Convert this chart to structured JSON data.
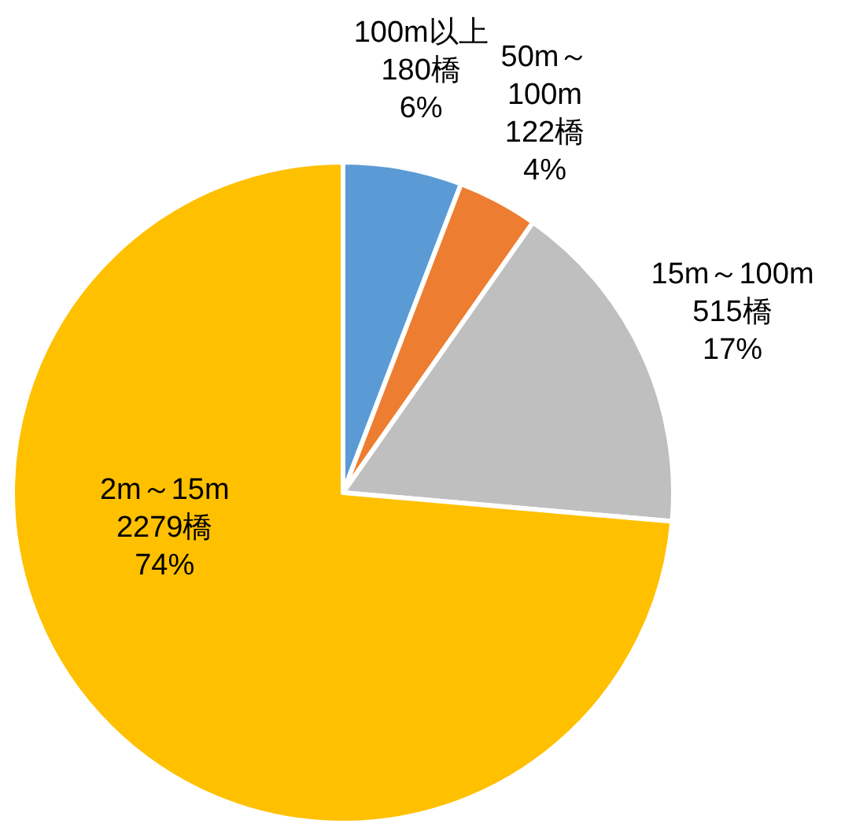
{
  "chart_data": {
    "type": "pie",
    "categories": [
      "100m以上",
      "50m～\n100m",
      "15m～100m",
      "2m～15m"
    ],
    "values": [
      180,
      122,
      515,
      2279
    ],
    "value_labels": [
      "180橋\n6%",
      "122橋\n4%",
      "515橋\n17%",
      "2279橋\n74%"
    ],
    "colors": [
      "#5b9bd5",
      "#ed7d31",
      "#bfbfbf",
      "#ffc000"
    ],
    "legend": false
  }
}
